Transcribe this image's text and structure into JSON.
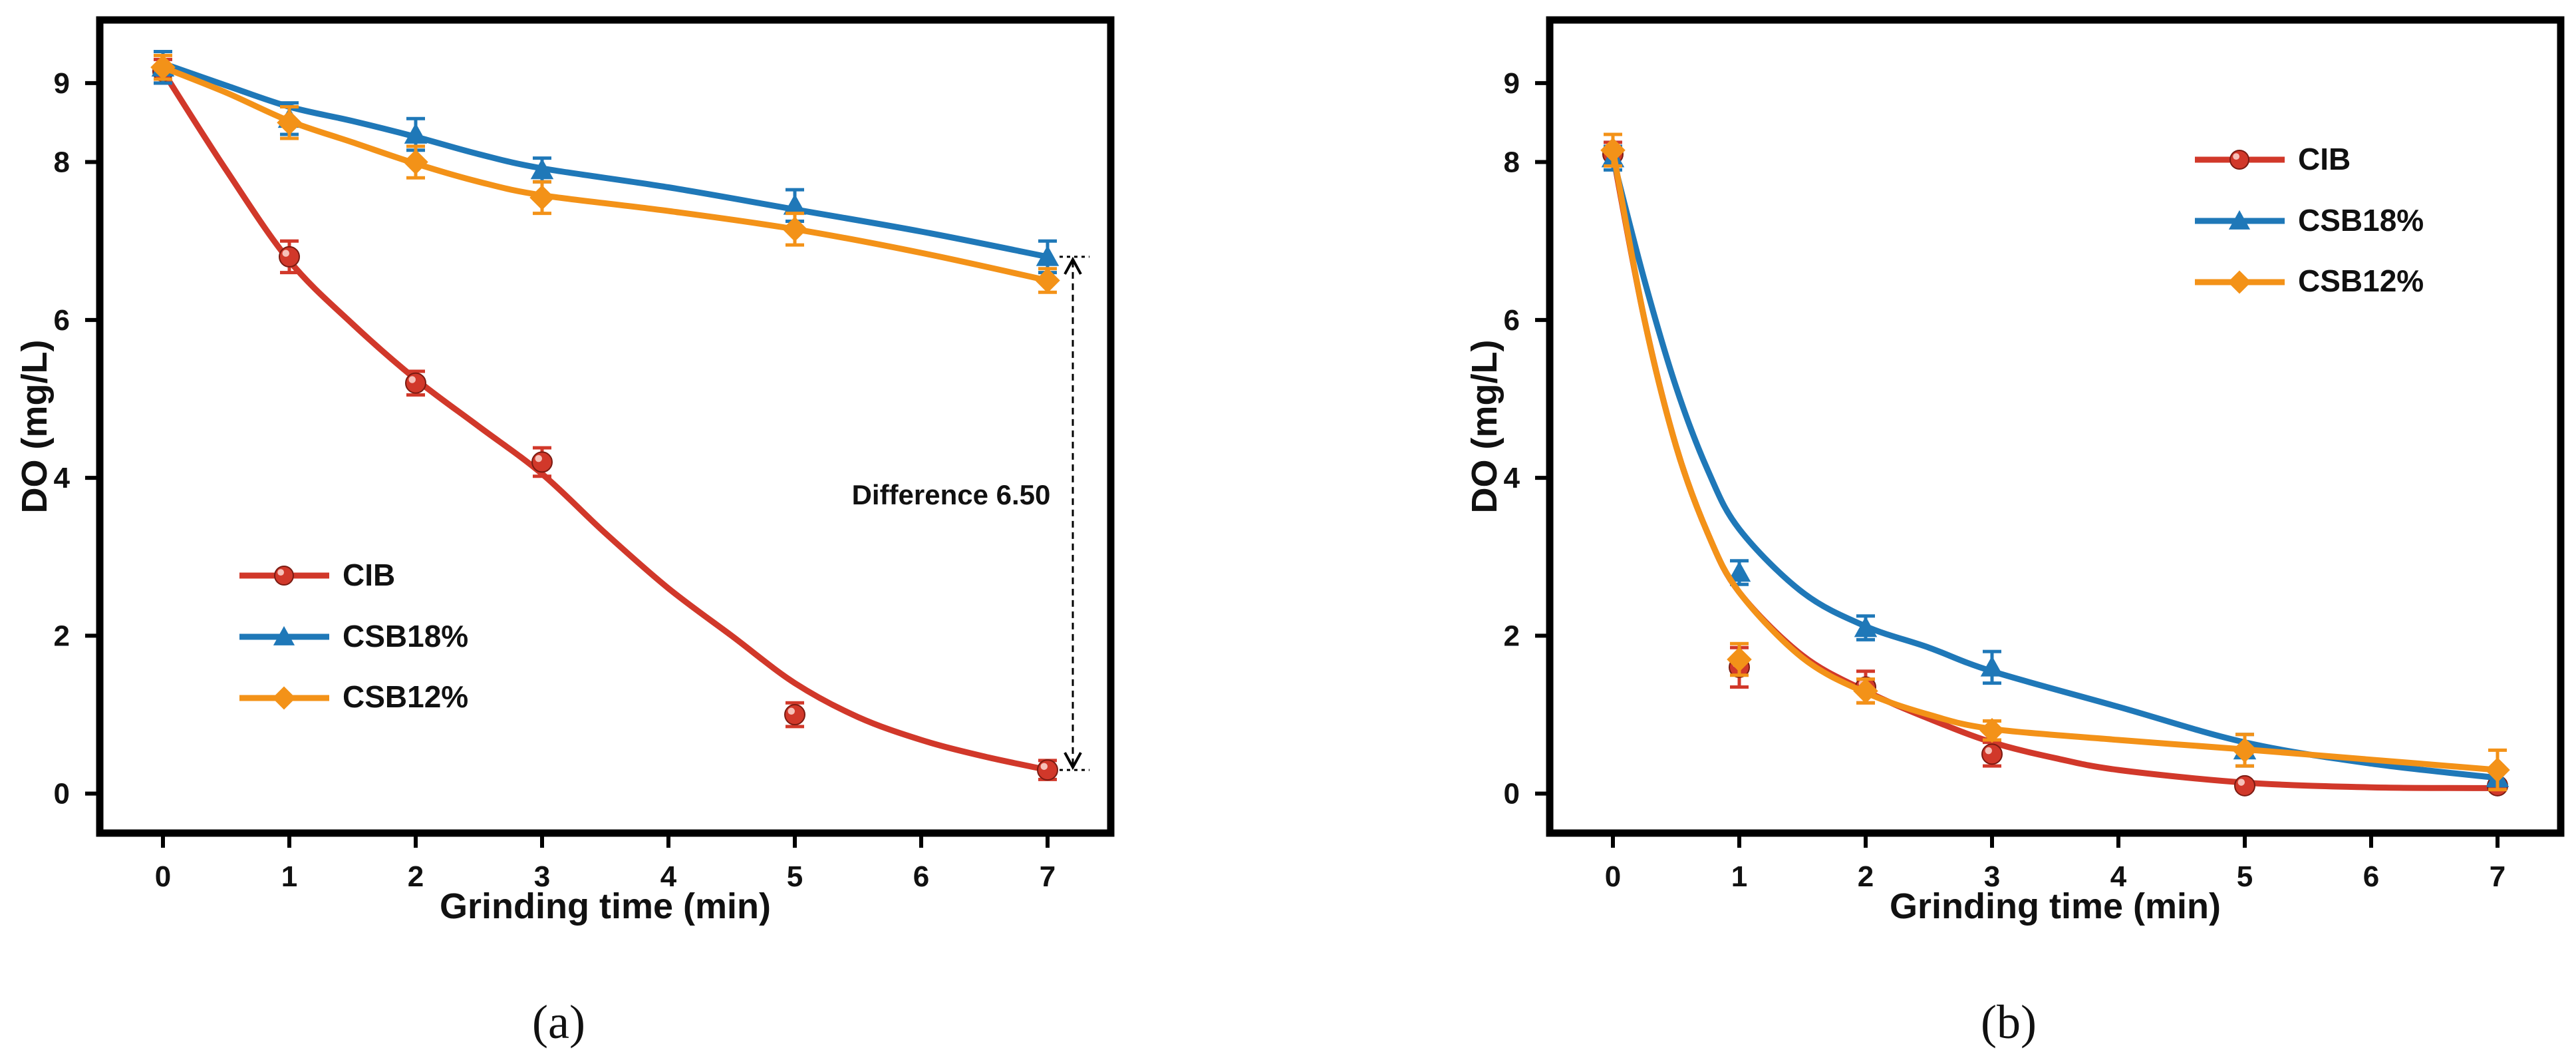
{
  "colors": {
    "CIB": "#d1382a",
    "CSB18%": "#1f78b8",
    "CSB12%": "#f39218",
    "frame": "#000000"
  },
  "chart_data": [
    {
      "type": "line",
      "panel": "(a)",
      "title": "",
      "xlabel": "Grinding time (min)",
      "ylabel": "DO (mg/L)",
      "xlim": [
        -0.5,
        7.5
      ],
      "ylim": [
        -0.5,
        9.8
      ],
      "xticks": [
        0,
        1,
        2,
        3,
        4,
        5,
        6,
        7
      ],
      "xtick_labels": [
        "0",
        "1",
        "2",
        "3",
        "4",
        "5",
        "6",
        "7"
      ],
      "yticks": [
        0,
        2,
        4,
        6,
        8,
        9
      ],
      "ytick_labels": [
        "0",
        "2",
        "4",
        "6",
        "8",
        "9"
      ],
      "legend_position": "lower-left",
      "series": [
        {
          "name": "CIB",
          "marker": "circle",
          "x": [
            0,
            1,
            2,
            3,
            5,
            7
          ],
          "y": [
            9.15,
            6.8,
            5.2,
            4.2,
            1.0,
            0.3
          ],
          "err": [
            0.15,
            0.2,
            0.15,
            0.18,
            0.15,
            0.12
          ],
          "fit_x": [
            0,
            0.5,
            1,
            1.5,
            2,
            2.5,
            3,
            3.5,
            4,
            4.5,
            5,
            5.5,
            6,
            6.5,
            7
          ],
          "fit_y": [
            9.15,
            7.9,
            6.75,
            5.95,
            5.25,
            4.65,
            4.05,
            3.3,
            2.6,
            2.0,
            1.4,
            0.97,
            0.68,
            0.47,
            0.3
          ]
        },
        {
          "name": "CSB18%",
          "marker": "triangle",
          "x": [
            0,
            1,
            2,
            3,
            5,
            7
          ],
          "y": [
            9.2,
            8.55,
            8.35,
            7.9,
            7.45,
            6.8
          ],
          "err": [
            0.2,
            0.2,
            0.2,
            0.15,
            0.2,
            0.2
          ],
          "fit_x": [
            0,
            0.5,
            1,
            1.5,
            2,
            2.5,
            3,
            4,
            5,
            6,
            7
          ],
          "fit_y": [
            9.25,
            8.97,
            8.7,
            8.52,
            8.32,
            8.1,
            7.92,
            7.68,
            7.4,
            7.12,
            6.8
          ]
        },
        {
          "name": "CSB12%",
          "marker": "diamond",
          "x": [
            0,
            1,
            2,
            3,
            5,
            7
          ],
          "y": [
            9.2,
            8.5,
            8.0,
            7.55,
            7.15,
            6.5
          ],
          "err": [
            0.15,
            0.2,
            0.2,
            0.2,
            0.2,
            0.15
          ],
          "fit_x": [
            0,
            0.5,
            1,
            1.5,
            2,
            2.5,
            3,
            4,
            5,
            6,
            7
          ],
          "fit_y": [
            9.2,
            8.88,
            8.52,
            8.25,
            7.98,
            7.75,
            7.58,
            7.38,
            7.15,
            6.85,
            6.5
          ]
        }
      ],
      "annotation": {
        "text": "Difference 6.50",
        "x": 7.2,
        "y_top": 6.8,
        "y_bottom": 0.3
      }
    },
    {
      "type": "line",
      "panel": "(b)",
      "title": "",
      "xlabel": "Grinding time (min)",
      "ylabel": "DO (mg/L)",
      "xlim": [
        -0.5,
        7.5
      ],
      "ylim": [
        -0.5,
        9.8
      ],
      "xticks": [
        0,
        1,
        2,
        3,
        4,
        5,
        6,
        7
      ],
      "xtick_labels": [
        "0",
        "1",
        "2",
        "3",
        "4",
        "5",
        "6",
        "7"
      ],
      "yticks": [
        0,
        2,
        4,
        6,
        8,
        9
      ],
      "ytick_labels": [
        "0",
        "2",
        "4",
        "6",
        "8",
        "9"
      ],
      "legend_position": "top-right",
      "series": [
        {
          "name": "CIB",
          "marker": "circle",
          "x": [
            0,
            1,
            2,
            3,
            5,
            7
          ],
          "y": [
            8.1,
            1.6,
            1.35,
            0.5,
            0.1,
            0.1
          ],
          "err": [
            0.15,
            0.25,
            0.2,
            0.15,
            0.05,
            0.05
          ],
          "fit_x": [
            0,
            0.25,
            0.5,
            0.75,
            1,
            1.5,
            2,
            2.5,
            3,
            3.5,
            4,
            5,
            6,
            7
          ],
          "fit_y": [
            8.1,
            6.0,
            4.4,
            3.3,
            2.55,
            1.75,
            1.3,
            0.95,
            0.65,
            0.45,
            0.3,
            0.14,
            0.08,
            0.07
          ]
        },
        {
          "name": "CSB18%",
          "marker": "triangle",
          "x": [
            0,
            1,
            2,
            3,
            5,
            7
          ],
          "y": [
            8.05,
            2.8,
            2.1,
            1.6,
            0.55,
            0.2
          ],
          "err": [
            0.15,
            0.15,
            0.15,
            0.2,
            0.2,
            0.1
          ],
          "fit_x": [
            0,
            0.25,
            0.5,
            0.75,
            1,
            1.5,
            2,
            2.5,
            3,
            4,
            5,
            6,
            7
          ],
          "fit_y": [
            8.05,
            6.5,
            5.15,
            4.1,
            3.35,
            2.55,
            2.12,
            1.85,
            1.55,
            1.1,
            0.65,
            0.38,
            0.2
          ]
        },
        {
          "name": "CSB12%",
          "marker": "diamond",
          "x": [
            0,
            1,
            2,
            3,
            5,
            7
          ],
          "y": [
            8.15,
            1.7,
            1.3,
            0.8,
            0.55,
            0.3
          ],
          "err": [
            0.2,
            0.2,
            0.15,
            0.12,
            0.2,
            0.25
          ],
          "fit_x": [
            0,
            0.25,
            0.5,
            0.75,
            1,
            1.5,
            2,
            2.5,
            3,
            4,
            5,
            6,
            7
          ],
          "fit_y": [
            8.15,
            6.0,
            4.4,
            3.3,
            2.55,
            1.72,
            1.28,
            1.0,
            0.82,
            0.68,
            0.56,
            0.43,
            0.3
          ]
        }
      ]
    }
  ]
}
